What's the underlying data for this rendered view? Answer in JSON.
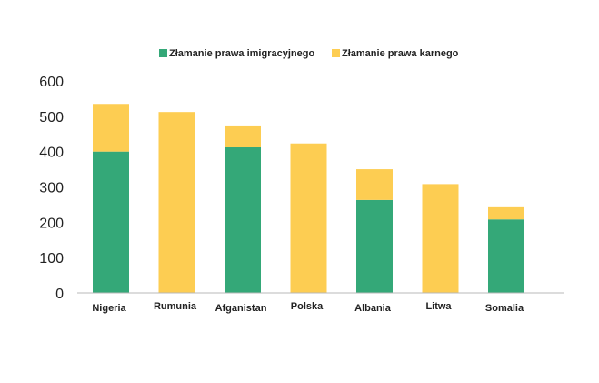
{
  "chart_data": {
    "type": "bar",
    "stacked": true,
    "title": "",
    "xlabel": "",
    "ylabel": "",
    "ylim": [
      0,
      600
    ],
    "yticks": [
      0,
      100,
      200,
      300,
      400,
      500,
      600
    ],
    "grid": false,
    "legend_position": "top-center",
    "categories": [
      "Nigeria",
      "Rumunia",
      "Afganistan",
      "Polska",
      "Albania",
      "Litwa",
      "Somalia"
    ],
    "series": [
      {
        "name": "Złamanie prawa imigracyjnego",
        "color": "#34a878",
        "values": [
          400,
          0,
          412,
          0,
          263,
          0,
          208
        ]
      },
      {
        "name": "Złamanie prawa karnego",
        "color": "#fdcd52",
        "values": [
          135,
          512,
          62,
          423,
          87,
          308,
          37
        ]
      }
    ]
  }
}
